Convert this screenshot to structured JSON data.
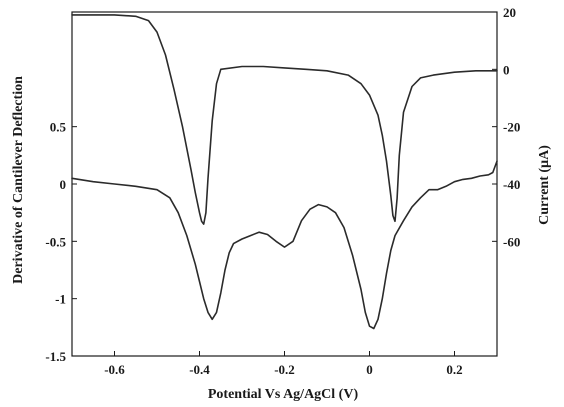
{
  "chart_data": {
    "type": "line",
    "title": "",
    "xlabel": "Potential Vs Ag/AgCl (V)",
    "ylabel_left": "Derivative of Cantilever Deflection",
    "ylabel_right": "Current (µA)",
    "xlim": [
      -0.7,
      0.3
    ],
    "ylim_left": [
      -1.5,
      1.5
    ],
    "ylim_right": [
      -100,
      20
    ],
    "grid": false,
    "legend": "none",
    "x_ticks": [
      -0.6,
      -0.4,
      -0.2,
      0,
      0.2
    ],
    "x_tick_labels": [
      "-0.6",
      "-0.4",
      "-0.2",
      "0",
      "0.2"
    ],
    "y_left_ticks": [
      0.5,
      0,
      -0.5,
      -1,
      -1.5
    ],
    "y_left_tick_labels": [
      "0.5",
      "0",
      "-0.5",
      "-1",
      "-1.5"
    ],
    "y_right_ticks": [
      20,
      0,
      -20,
      -40,
      -60
    ],
    "y_right_tick_labels": [
      "20",
      "0",
      "-20",
      "-40",
      "-60"
    ],
    "series": [
      {
        "axis": "left",
        "x": [
          -0.7,
          -0.65,
          -0.6,
          -0.55,
          -0.5,
          -0.47,
          -0.45,
          -0.43,
          -0.41,
          -0.4,
          -0.39,
          -0.38,
          -0.37,
          -0.36,
          -0.35,
          -0.34,
          -0.33,
          -0.32,
          -0.3,
          -0.28,
          -0.26,
          -0.24,
          -0.22,
          -0.2,
          -0.18,
          -0.16,
          -0.14,
          -0.12,
          -0.1,
          -0.08,
          -0.06,
          -0.04,
          -0.02,
          -0.01,
          0,
          0.01,
          0.02,
          0.03,
          0.04,
          0.05,
          0.06,
          0.08,
          0.1,
          0.12,
          0.14,
          0.16,
          0.18,
          0.2,
          0.22,
          0.24,
          0.26,
          0.28,
          0.29,
          0.3
        ],
        "values": [
          0.05,
          0.02,
          0.0,
          -0.02,
          -0.05,
          -0.12,
          -0.25,
          -0.45,
          -0.7,
          -0.85,
          -1.0,
          -1.12,
          -1.18,
          -1.12,
          -0.95,
          -0.75,
          -0.6,
          -0.52,
          -0.48,
          -0.45,
          -0.42,
          -0.44,
          -0.5,
          -0.55,
          -0.5,
          -0.32,
          -0.22,
          -0.18,
          -0.2,
          -0.25,
          -0.38,
          -0.62,
          -0.92,
          -1.12,
          -1.24,
          -1.26,
          -1.18,
          -1.0,
          -0.78,
          -0.58,
          -0.45,
          -0.32,
          -0.2,
          -0.12,
          -0.05,
          -0.05,
          -0.02,
          0.02,
          0.04,
          0.05,
          0.07,
          0.08,
          0.1,
          0.2
        ]
      },
      {
        "axis": "right",
        "x": [
          -0.7,
          -0.6,
          -0.55,
          -0.52,
          -0.5,
          -0.48,
          -0.46,
          -0.44,
          -0.42,
          -0.41,
          -0.4,
          -0.395,
          -0.39,
          -0.385,
          -0.38,
          -0.37,
          -0.36,
          -0.35,
          -0.3,
          -0.25,
          -0.2,
          -0.15,
          -0.1,
          -0.05,
          -0.02,
          0.0,
          0.02,
          0.03,
          0.04,
          0.05,
          0.055,
          0.06,
          0.065,
          0.07,
          0.08,
          0.1,
          0.12,
          0.15,
          0.2,
          0.25,
          0.3
        ],
        "values": [
          19,
          19,
          18.5,
          17,
          13,
          5,
          -7,
          -20,
          -35,
          -43,
          -50,
          -53,
          -54,
          -50,
          -38,
          -18,
          -5,
          0,
          1,
          1,
          0.5,
          0,
          -0.5,
          -2,
          -5,
          -9,
          -16,
          -23,
          -32,
          -44,
          -51,
          -53,
          -45,
          -30,
          -15,
          -6,
          -3,
          -2,
          -1,
          -0.5,
          -0.5
        ]
      }
    ]
  }
}
